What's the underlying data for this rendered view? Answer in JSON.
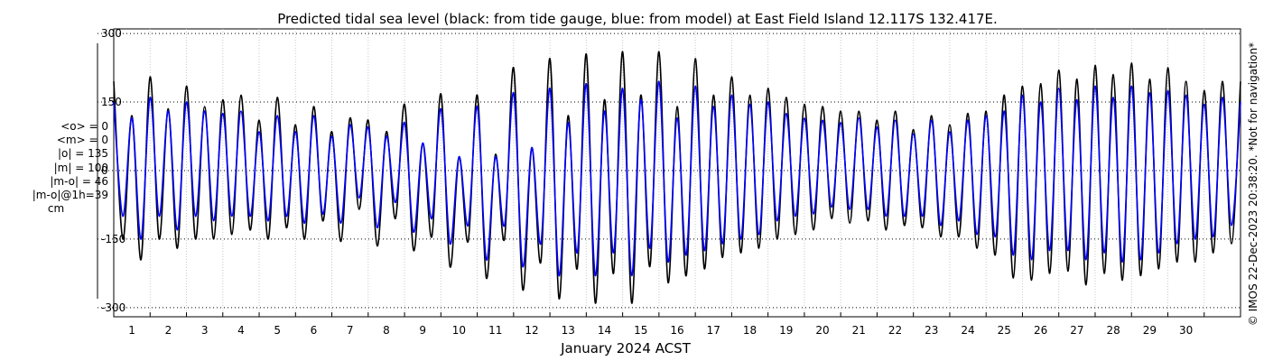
{
  "chart_data": {
    "type": "line",
    "title": "Predicted tidal sea level (black: from tide gauge, blue: from model) at East Field Island 12.117S 132.417E.",
    "xlabel": "January 2024 ACST",
    "ylabel": "",
    "xlim": [
      0,
      31
    ],
    "ylim": [
      -320,
      310
    ],
    "x_ticks": [
      1,
      2,
      3,
      4,
      5,
      6,
      7,
      8,
      9,
      10,
      11,
      12,
      13,
      14,
      15,
      16,
      17,
      18,
      19,
      20,
      21,
      22,
      23,
      24,
      25,
      26,
      27,
      28,
      29,
      30
    ],
    "x_tick_labels": [
      "1",
      "2",
      "3",
      "4",
      "5",
      "6",
      "7",
      "8",
      "9",
      "10",
      "11",
      "12",
      "13",
      "14",
      "15",
      "16",
      "17",
      "18",
      "19",
      "20",
      "21",
      "22",
      "23",
      "24",
      "25",
      "26",
      "27",
      "28",
      "29",
      "30"
    ],
    "y_ticks": [
      300,
      150,
      0,
      -150,
      -300
    ],
    "y_tick_labels": [
      "300",
      "150",
      "0",
      "-150",
      "-300"
    ],
    "grid": true,
    "x_samples": [
      0.0,
      0.25,
      0.5,
      0.75,
      1.0,
      1.25,
      1.5,
      1.75,
      2.0,
      2.25,
      2.5,
      2.75,
      3.0,
      3.25,
      3.5,
      3.75,
      4.0,
      4.25,
      4.5,
      4.75,
      5.0,
      5.25,
      5.5,
      5.75,
      6.0,
      6.25,
      6.5,
      6.75,
      7.0,
      7.25,
      7.5,
      7.75,
      8.0,
      8.25,
      8.5,
      8.75,
      9.0,
      9.25,
      9.5,
      9.75,
      10.0,
      10.25,
      10.5,
      10.75,
      11.0,
      11.25,
      11.5,
      11.75,
      12.0,
      12.25,
      12.5,
      12.75,
      13.0,
      13.25,
      13.5,
      13.75,
      14.0,
      14.25,
      14.5,
      14.75,
      15.0,
      15.25,
      15.5,
      15.75,
      16.0,
      16.25,
      16.5,
      16.75,
      17.0,
      17.25,
      17.5,
      17.75,
      18.0,
      18.25,
      18.5,
      18.75,
      19.0,
      19.25,
      19.5,
      19.75,
      20.0,
      20.25,
      20.5,
      20.75,
      21.0,
      21.25,
      21.5,
      21.75,
      22.0,
      22.25,
      22.5,
      22.75,
      23.0,
      23.25,
      23.5,
      23.75,
      24.0,
      24.25,
      24.5,
      24.75,
      25.0,
      25.25,
      25.5,
      25.75,
      26.0,
      26.25,
      26.5,
      26.75,
      27.0,
      27.25,
      27.5,
      27.75,
      28.0,
      28.25,
      28.5,
      28.75,
      29.0,
      29.25,
      29.5,
      29.75,
      30.0,
      30.25,
      30.5,
      30.75,
      31.0
    ],
    "series": [
      {
        "name": "tide gauge",
        "color": "#000000",
        "values": [
          195,
          -150,
          120,
          -195,
          205,
          -150,
          135,
          -170,
          185,
          -150,
          140,
          -150,
          155,
          -140,
          165,
          -130,
          110,
          -150,
          160,
          -125,
          100,
          -150,
          140,
          -110,
          85,
          -155,
          115,
          -85,
          110,
          -165,
          85,
          -105,
          145,
          -175,
          60,
          -145,
          168,
          -210,
          30,
          -155,
          165,
          -235,
          35,
          -150,
          225,
          -260,
          50,
          -200,
          245,
          -280,
          120,
          -215,
          255,
          -290,
          155,
          -225,
          260,
          -290,
          165,
          -210,
          260,
          -245,
          140,
          -230,
          245,
          -215,
          165,
          -190,
          205,
          -180,
          165,
          -170,
          180,
          -150,
          160,
          -140,
          145,
          -130,
          140,
          -105,
          130,
          -115,
          130,
          -110,
          110,
          -130,
          130,
          -120,
          90,
          -125,
          120,
          -145,
          100,
          -145,
          125,
          -170,
          130,
          -185,
          165,
          -235,
          185,
          -240,
          190,
          -225,
          220,
          -220,
          200,
          -250,
          230,
          -225,
          210,
          -240,
          235,
          -230,
          200,
          -215,
          225,
          -200,
          195,
          -200,
          175,
          -180,
          195,
          -160,
          195
        ]
      },
      {
        "name": "model",
        "color": "#0000ff",
        "values": [
          150,
          -100,
          115,
          -150,
          160,
          -100,
          130,
          -130,
          150,
          -100,
          130,
          -110,
          125,
          -100,
          130,
          -100,
          85,
          -110,
          120,
          -100,
          85,
          -115,
          120,
          -95,
          75,
          -115,
          100,
          -60,
          95,
          -125,
          75,
          -70,
          105,
          -135,
          60,
          -105,
          135,
          -160,
          30,
          -120,
          140,
          -195,
          30,
          -120,
          170,
          -210,
          50,
          -160,
          180,
          -230,
          105,
          -180,
          190,
          -230,
          130,
          -180,
          180,
          -230,
          155,
          -170,
          195,
          -200,
          115,
          -185,
          185,
          -175,
          140,
          -160,
          165,
          -150,
          145,
          -140,
          150,
          -110,
          125,
          -100,
          115,
          -95,
          110,
          -80,
          105,
          -85,
          115,
          -85,
          95,
          -100,
          110,
          -100,
          80,
          -100,
          110,
          -120,
          85,
          -110,
          110,
          -140,
          120,
          -145,
          130,
          -185,
          165,
          -195,
          150,
          -175,
          180,
          -175,
          155,
          -195,
          185,
          -180,
          160,
          -200,
          185,
          -195,
          170,
          -180,
          175,
          -160,
          165,
          -150,
          145,
          -145,
          160,
          -120,
          150
        ]
      }
    ]
  },
  "stats": {
    "lines": [
      "<o> = 0",
      "<m> = 0",
      "|o| = 135",
      "|m| = 100",
      "|m-o| = 46",
      "|m-o|@1h=39"
    ],
    "unit": "cm"
  },
  "watermark": "© IMOS 22-Dec-2023 20:38:20. *Not for navigation*"
}
